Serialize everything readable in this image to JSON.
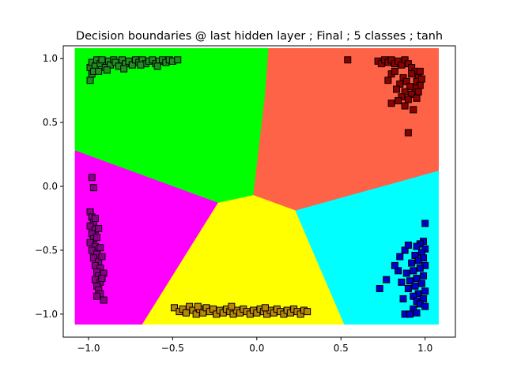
{
  "chart_data": {
    "type": "scatter",
    "title": "Decision boundaries @ last hidden layer ; Final ; 5 classes ; tanh",
    "xlabel": "",
    "ylabel": "",
    "xlim": [
      -1.15,
      1.18
    ],
    "ylim": [
      -1.18,
      1.1
    ],
    "x_ticks": [
      -1.0,
      -0.5,
      0.0,
      0.5,
      1.0
    ],
    "x_tick_labels": [
      "−1.0",
      "−0.5",
      "0.0",
      "0.5",
      "1.0"
    ],
    "y_ticks": [
      -1.0,
      -0.5,
      0.0,
      0.5,
      1.0
    ],
    "y_tick_labels": [
      "−1.0",
      "−0.5",
      "0.0",
      "0.5",
      "1.0"
    ],
    "grid": false,
    "regions": [
      {
        "color": "#00ff00",
        "polygon": [
          [
            -1.08,
            1.08
          ],
          [
            0.07,
            1.08
          ],
          [
            0.05,
            0.72
          ],
          [
            -0.02,
            -0.07
          ],
          [
            -0.23,
            -0.13
          ],
          [
            -1.08,
            0.28
          ]
        ]
      },
      {
        "color": "#ff6347",
        "polygon": [
          [
            0.07,
            1.08
          ],
          [
            1.08,
            1.08
          ],
          [
            1.08,
            0.12
          ],
          [
            0.23,
            -0.19
          ],
          [
            -0.02,
            -0.07
          ],
          [
            0.05,
            0.72
          ]
        ]
      },
      {
        "color": "#ff00ff",
        "polygon": [
          [
            -1.08,
            0.28
          ],
          [
            -0.23,
            -0.13
          ],
          [
            -0.68,
            -1.08
          ],
          [
            -1.08,
            -1.08
          ]
        ]
      },
      {
        "color": "#ffff00",
        "polygon": [
          [
            -0.23,
            -0.13
          ],
          [
            -0.02,
            -0.07
          ],
          [
            0.23,
            -0.19
          ],
          [
            0.52,
            -1.08
          ],
          [
            -0.68,
            -1.08
          ]
        ]
      },
      {
        "color": "#00ffff",
        "polygon": [
          [
            0.23,
            -0.19
          ],
          [
            1.08,
            0.12
          ],
          [
            1.08,
            -1.08
          ],
          [
            0.52,
            -1.08
          ]
        ]
      }
    ],
    "series": [
      {
        "color": "#228b22",
        "points": [
          [
            -0.99,
            0.93
          ],
          [
            -0.98,
            0.97
          ],
          [
            -0.96,
            0.94
          ],
          [
            -0.95,
            0.99
          ],
          [
            -0.93,
            0.96
          ],
          [
            -0.92,
            0.99
          ],
          [
            -0.9,
            0.93
          ],
          [
            -0.88,
            0.98
          ],
          [
            -0.87,
            0.95
          ],
          [
            -0.85,
            0.99
          ],
          [
            -0.84,
            0.97
          ],
          [
            -0.82,
            0.94
          ],
          [
            -0.8,
            0.99
          ],
          [
            -0.78,
            0.96
          ],
          [
            -0.76,
            0.98
          ],
          [
            -0.74,
            0.95
          ],
          [
            -0.72,
            0.99
          ],
          [
            -0.7,
            0.97
          ],
          [
            -0.68,
            0.99
          ],
          [
            -0.66,
            0.96
          ],
          [
            -0.64,
            0.98
          ],
          [
            -0.62,
            0.99
          ],
          [
            -0.6,
            0.96
          ],
          [
            -0.58,
            0.98
          ],
          [
            -0.56,
            0.99
          ],
          [
            -0.54,
            0.97
          ],
          [
            -0.52,
            0.99
          ],
          [
            -0.5,
            0.98
          ],
          [
            -0.47,
            0.99
          ],
          [
            -0.98,
            0.88
          ],
          [
            -0.99,
            0.83
          ],
          [
            -0.97,
            0.9
          ],
          [
            -0.94,
            0.9
          ],
          [
            -0.89,
            0.91
          ],
          [
            -0.79,
            0.92
          ],
          [
            -0.69,
            0.95
          ],
          [
            -0.59,
            0.94
          ]
        ]
      },
      {
        "color": "#8b0000",
        "points": [
          [
            0.54,
            0.99
          ],
          [
            0.72,
            0.98
          ],
          [
            0.74,
            0.96
          ],
          [
            0.76,
            0.99
          ],
          [
            0.78,
            0.97
          ],
          [
            0.8,
            0.99
          ],
          [
            0.82,
            0.96
          ],
          [
            0.84,
            0.98
          ],
          [
            0.86,
            0.95
          ],
          [
            0.88,
            0.99
          ],
          [
            0.9,
            0.96
          ],
          [
            0.92,
            0.93
          ],
          [
            0.94,
            0.9
          ],
          [
            0.96,
            0.86
          ],
          [
            0.95,
            0.82
          ],
          [
            0.97,
            0.79
          ],
          [
            0.94,
            0.77
          ],
          [
            0.96,
            0.74
          ],
          [
            0.92,
            0.72
          ],
          [
            0.95,
            0.69
          ],
          [
            0.9,
            0.68
          ],
          [
            0.87,
            0.85
          ],
          [
            0.89,
            0.82
          ],
          [
            0.91,
            0.78
          ],
          [
            0.85,
            0.8
          ],
          [
            0.83,
            0.76
          ],
          [
            0.88,
            0.74
          ],
          [
            0.86,
            0.7
          ],
          [
            0.8,
            0.88
          ],
          [
            0.78,
            0.83
          ],
          [
            0.82,
            0.9
          ],
          [
            0.84,
            0.67
          ],
          [
            0.8,
            0.65
          ],
          [
            0.88,
            0.63
          ],
          [
            0.93,
            0.6
          ],
          [
            0.97,
            0.9
          ],
          [
            0.98,
            0.84
          ],
          [
            0.92,
            0.88
          ],
          [
            0.9,
            0.42
          ]
        ]
      },
      {
        "color": "#8b008b",
        "points": [
          [
            -0.98,
            0.07
          ],
          [
            -0.97,
            -0.01
          ],
          [
            -0.99,
            -0.2
          ],
          [
            -0.98,
            -0.24
          ],
          [
            -0.97,
            -0.28
          ],
          [
            -0.99,
            -0.31
          ],
          [
            -0.96,
            -0.34
          ],
          [
            -0.98,
            -0.37
          ],
          [
            -0.97,
            -0.41
          ],
          [
            -0.99,
            -0.44
          ],
          [
            -0.96,
            -0.47
          ],
          [
            -0.98,
            -0.5
          ],
          [
            -0.95,
            -0.53
          ],
          [
            -0.97,
            -0.56
          ],
          [
            -0.94,
            -0.59
          ],
          [
            -0.96,
            -0.62
          ],
          [
            -0.93,
            -0.64
          ],
          [
            -0.95,
            -0.67
          ],
          [
            -0.94,
            -0.7
          ],
          [
            -0.96,
            -0.73
          ],
          [
            -0.93,
            -0.75
          ],
          [
            -0.95,
            -0.78
          ],
          [
            -0.94,
            -0.81
          ],
          [
            -0.93,
            -0.84
          ],
          [
            -0.95,
            -0.86
          ],
          [
            -0.91,
            -0.89
          ],
          [
            -0.92,
            -0.55
          ],
          [
            -0.93,
            -0.48
          ],
          [
            -0.95,
            -0.4
          ],
          [
            -0.91,
            -0.68
          ],
          [
            -0.92,
            -0.72
          ],
          [
            -0.96,
            -0.25
          ],
          [
            -0.94,
            -0.33
          ]
        ]
      },
      {
        "color": "#b8860b",
        "points": [
          [
            -0.49,
            -0.95
          ],
          [
            -0.46,
            -0.98
          ],
          [
            -0.44,
            -0.96
          ],
          [
            -0.42,
            -0.99
          ],
          [
            -0.4,
            -0.94
          ],
          [
            -0.38,
            -0.97
          ],
          [
            -0.36,
            -1.0
          ],
          [
            -0.34,
            -0.96
          ],
          [
            -0.32,
            -0.99
          ],
          [
            -0.3,
            -0.95
          ],
          [
            -0.28,
            -0.98
          ],
          [
            -0.26,
            -0.96
          ],
          [
            -0.24,
            -1.0
          ],
          [
            -0.22,
            -0.97
          ],
          [
            -0.2,
            -0.99
          ],
          [
            -0.18,
            -0.96
          ],
          [
            -0.16,
            -0.98
          ],
          [
            -0.14,
            -1.0
          ],
          [
            -0.12,
            -0.97
          ],
          [
            -0.1,
            -0.99
          ],
          [
            -0.08,
            -0.96
          ],
          [
            -0.06,
            -0.98
          ],
          [
            -0.04,
            -1.0
          ],
          [
            -0.02,
            -0.97
          ],
          [
            0.0,
            -0.99
          ],
          [
            0.02,
            -0.96
          ],
          [
            0.04,
            -0.98
          ],
          [
            0.06,
            -1.0
          ],
          [
            0.08,
            -0.97
          ],
          [
            0.1,
            -0.99
          ],
          [
            0.12,
            -0.96
          ],
          [
            0.14,
            -0.98
          ],
          [
            0.16,
            -1.0
          ],
          [
            0.18,
            -0.97
          ],
          [
            0.2,
            -0.99
          ],
          [
            0.22,
            -0.96
          ],
          [
            0.24,
            -0.98
          ],
          [
            0.26,
            -1.0
          ],
          [
            0.28,
            -0.97
          ],
          [
            0.3,
            -0.98
          ],
          [
            -0.35,
            -0.94
          ],
          [
            -0.15,
            -0.94
          ],
          [
            0.05,
            -0.95
          ]
        ]
      },
      {
        "color": "#0000cd",
        "points": [
          [
            1.0,
            -0.29
          ],
          [
            0.99,
            -0.43
          ],
          [
            0.97,
            -0.45
          ],
          [
            0.95,
            -0.47
          ],
          [
            1.0,
            -0.49
          ],
          [
            0.98,
            -0.52
          ],
          [
            0.94,
            -0.54
          ],
          [
            0.99,
            -0.56
          ],
          [
            0.96,
            -0.58
          ],
          [
            0.92,
            -0.6
          ],
          [
            1.0,
            -0.62
          ],
          [
            0.97,
            -0.64
          ],
          [
            0.93,
            -0.66
          ],
          [
            0.89,
            -0.68
          ],
          [
            0.99,
            -0.7
          ],
          [
            0.95,
            -0.72
          ],
          [
            0.91,
            -0.74
          ],
          [
            0.98,
            -0.76
          ],
          [
            0.94,
            -0.78
          ],
          [
            0.9,
            -0.8
          ],
          [
            1.0,
            -0.82
          ],
          [
            0.96,
            -0.84
          ],
          [
            0.93,
            -0.86
          ],
          [
            0.99,
            -0.88
          ],
          [
            0.95,
            -0.9
          ],
          [
            0.97,
            -0.92
          ],
          [
            1.0,
            -0.94
          ],
          [
            0.93,
            -0.96
          ],
          [
            0.88,
            -1.0
          ],
          [
            0.91,
            -1.0
          ],
          [
            0.95,
            -0.99
          ],
          [
            0.86,
            -0.75
          ],
          [
            0.84,
            -0.66
          ],
          [
            0.85,
            -0.55
          ],
          [
            0.88,
            -0.5
          ],
          [
            0.87,
            -0.88
          ],
          [
            0.77,
            -0.73
          ],
          [
            0.73,
            -0.8
          ],
          [
            0.82,
            -0.62
          ],
          [
            0.9,
            -0.46
          ]
        ]
      }
    ]
  }
}
